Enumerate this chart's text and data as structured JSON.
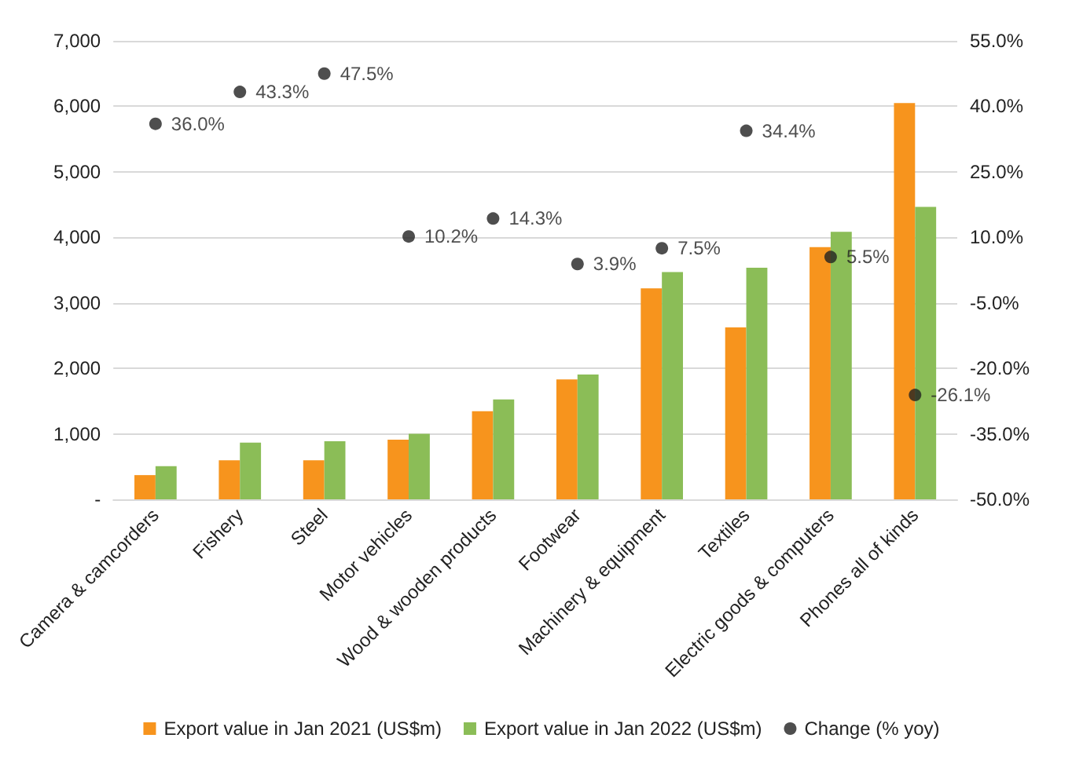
{
  "chart_data": {
    "type": "bar",
    "categories": [
      "Camera & camcorders",
      "Fishery",
      "Steel",
      "Motor vehicles",
      "Wood & wooden products",
      "Footwear",
      "Machinery & equipment",
      "Textiles",
      "Electric goods & computers",
      "Phones all of kinds"
    ],
    "series": [
      {
        "name": "Export value in Jan 2021 (US$m)",
        "color": "#f7941d",
        "values": [
          370,
          595,
          595,
          910,
          1345,
          1830,
          3220,
          2625,
          3850,
          6050
        ]
      },
      {
        "name": "Export value in Jan 2022 (US$m)",
        "color": "#8bbd57",
        "values": [
          505,
          865,
          887,
          1000,
          1525,
          1905,
          3470,
          3535,
          4085,
          4465
        ]
      },
      {
        "name": "Change (% yoy)",
        "type": "scatter",
        "axis": "y2",
        "color": "#222222",
        "x": [
          "Camera & camcorders",
          "Fishery",
          "Steel",
          "Motor vehicles",
          "Wood & wooden products",
          "Footwear",
          "Machinery & equipment",
          "Textiles",
          "Electric goods & computers",
          "Phones all of kinds"
        ],
        "values": [
          36.0,
          43.3,
          47.5,
          10.2,
          14.3,
          3.9,
          7.5,
          34.4,
          5.5,
          -26.1
        ],
        "value_labels": [
          "36.0%",
          "43.3%",
          "47.5%",
          "10.2%",
          "14.3%",
          "3.9%",
          "7.5%",
          "34.4%",
          "5.5%",
          "-26.1%"
        ]
      }
    ],
    "ylim": [
      0,
      7000
    ],
    "yticks": [
      {
        "value": 0,
        "label": "-"
      },
      {
        "value": 1000,
        "label": "1,000"
      },
      {
        "value": 2000,
        "label": "2,000"
      },
      {
        "value": 3000,
        "label": "3,000"
      },
      {
        "value": 4000,
        "label": "4,000"
      },
      {
        "value": 5000,
        "label": "5,000"
      },
      {
        "value": 6000,
        "label": "6,000"
      },
      {
        "value": 7000,
        "label": "7,000"
      }
    ],
    "y2lim": [
      -50,
      55
    ],
    "y2ticks": [
      {
        "value": -50,
        "label": "-50.0%"
      },
      {
        "value": -35,
        "label": "-35.0%"
      },
      {
        "value": -20,
        "label": "-20.0%"
      },
      {
        "value": -5,
        "label": "-5.0%"
      },
      {
        "value": 10,
        "label": "10.0%"
      },
      {
        "value": 25,
        "label": "25.0%"
      },
      {
        "value": 40,
        "label": "40.0%"
      },
      {
        "value": 55,
        "label": "55.0%"
      }
    ],
    "grid": "y",
    "legend": "bottom",
    "marker": "circle"
  }
}
